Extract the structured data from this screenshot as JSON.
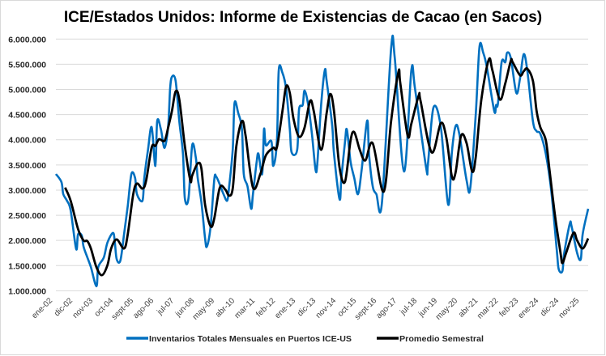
{
  "chart_data": {
    "type": "line",
    "title": "ICE/Estados Unidos: Informe de Existencias de Cacao (en Sacos)",
    "xlabel": "",
    "ylabel": "",
    "ylim": [
      1000000,
      6000000
    ],
    "y_ticks": [
      1000000,
      1500000,
      2000000,
      2500000,
      3000000,
      3500000,
      4000000,
      4500000,
      5000000,
      5500000,
      6000000
    ],
    "y_tick_labels": [
      "1.000.000",
      "1.500.000",
      "2.000.000",
      "2.500.000",
      "3.000.000",
      "3.500.000",
      "4.000.000",
      "4.500.000",
      "5.000.000",
      "5.500.000",
      "6.000.000"
    ],
    "x_range": [
      "2002-01",
      "2026-02"
    ],
    "x_ticks": [
      "2002-01",
      "2002-12",
      "2003-11",
      "2004-10",
      "2005-09",
      "2006-08",
      "2007-07",
      "2008-06",
      "2009-05",
      "2010-04",
      "2011-03",
      "2012-02",
      "2013-01",
      "2013-12",
      "2014-11",
      "2015-10",
      "2016-09",
      "2017-08",
      "2018-07",
      "2019-06",
      "2020-05",
      "2021-04",
      "2022-03",
      "2023-02",
      "2024-01",
      "2024-12",
      "2025-11"
    ],
    "x_tick_labels": [
      "ene-02",
      "dic-02",
      "nov-03",
      "oct-04",
      "sept-05",
      "ago-06",
      "jul-07",
      "jun-08",
      "may-09",
      "abr-10",
      "mar-11",
      "feb-12",
      "ene-13",
      "dic-13",
      "nov-14",
      "oct-15",
      "sept-16",
      "ago-17",
      "jul-18",
      "jun-19",
      "may-20",
      "abr-21",
      "mar-22",
      "feb-23",
      "ene-24",
      "dic-24",
      "nov-25"
    ],
    "grid": true,
    "legend_position": "bottom",
    "series": [
      {
        "name": "Inventarios Totales Mensuales en Puertos ICE-US",
        "color": "#0070C0",
        "points": [
          [
            "2002-01",
            3320000
          ],
          [
            "2002-04",
            3160000
          ],
          [
            "2002-05",
            2920000
          ],
          [
            "2002-07",
            2790000
          ],
          [
            "2002-09",
            2600000
          ],
          [
            "2002-12",
            1830000
          ],
          [
            "2003-01",
            2120000
          ],
          [
            "2003-03",
            2100000
          ],
          [
            "2003-04",
            1880000
          ],
          [
            "2003-06",
            1670000
          ],
          [
            "2003-08",
            1470000
          ],
          [
            "2003-11",
            1090000
          ],
          [
            "2003-12",
            1470000
          ],
          [
            "2004-03",
            1660000
          ],
          [
            "2004-05",
            1960000
          ],
          [
            "2004-08",
            2150000
          ],
          [
            "2004-09",
            1960000
          ],
          [
            "2004-10",
            1630000
          ],
          [
            "2004-12",
            1600000
          ],
          [
            "2005-02",
            2120000
          ],
          [
            "2005-04",
            2680000
          ],
          [
            "2005-06",
            3320000
          ],
          [
            "2005-08",
            3240000
          ],
          [
            "2005-09",
            2920000
          ],
          [
            "2005-12",
            2790000
          ],
          [
            "2006-01",
            3240000
          ],
          [
            "2006-03",
            3800000
          ],
          [
            "2006-05",
            4250000
          ],
          [
            "2006-07",
            3480000
          ],
          [
            "2006-08",
            4370000
          ],
          [
            "2006-10",
            4210000
          ],
          [
            "2006-12",
            3840000
          ],
          [
            "2007-02",
            4290000
          ],
          [
            "2007-03",
            5010000
          ],
          [
            "2007-04",
            5250000
          ],
          [
            "2007-06",
            5170000
          ],
          [
            "2007-08",
            4370000
          ],
          [
            "2007-10",
            3720000
          ],
          [
            "2007-11",
            2840000
          ],
          [
            "2008-01",
            2840000
          ],
          [
            "2008-03",
            3890000
          ],
          [
            "2008-05",
            3640000
          ],
          [
            "2008-06",
            3240000
          ],
          [
            "2008-08",
            2760000
          ],
          [
            "2008-10",
            2040000
          ],
          [
            "2008-11",
            1880000
          ],
          [
            "2009-01",
            2280000
          ],
          [
            "2009-03",
            3210000
          ],
          [
            "2009-04",
            3270000
          ],
          [
            "2009-06",
            3110000
          ],
          [
            "2009-08",
            2920000
          ],
          [
            "2009-10",
            2790000
          ],
          [
            "2009-11",
            3050000
          ],
          [
            "2010-01",
            3800000
          ],
          [
            "2010-02",
            4730000
          ],
          [
            "2010-04",
            4530000
          ],
          [
            "2010-06",
            4210000
          ],
          [
            "2010-07",
            3320000
          ],
          [
            "2010-09",
            3080000
          ],
          [
            "2010-11",
            2630000
          ],
          [
            "2010-12",
            2920000
          ],
          [
            "2011-02",
            3560000
          ],
          [
            "2011-03",
            3720000
          ],
          [
            "2011-05",
            3320000
          ],
          [
            "2011-06",
            4210000
          ],
          [
            "2011-07",
            3890000
          ],
          [
            "2011-10",
            3970000
          ],
          [
            "2011-11",
            3480000
          ],
          [
            "2012-01",
            3970000
          ],
          [
            "2012-02",
            5380000
          ],
          [
            "2012-04",
            5330000
          ],
          [
            "2012-06",
            5010000
          ],
          [
            "2012-08",
            4210000
          ],
          [
            "2012-09",
            3750000
          ],
          [
            "2012-12",
            3800000
          ],
          [
            "2013-01",
            4600000
          ],
          [
            "2013-03",
            4690000
          ],
          [
            "2013-04",
            4980000
          ],
          [
            "2013-06",
            4690000
          ],
          [
            "2013-08",
            4120000
          ],
          [
            "2013-10",
            3400000
          ],
          [
            "2013-11",
            3560000
          ],
          [
            "2014-01",
            4690000
          ],
          [
            "2014-03",
            5380000
          ],
          [
            "2014-04",
            5170000
          ],
          [
            "2014-07",
            4290000
          ],
          [
            "2014-08",
            3720000
          ],
          [
            "2014-11",
            2820000
          ],
          [
            "2014-12",
            3240000
          ],
          [
            "2015-02",
            3970000
          ],
          [
            "2015-03",
            4200000
          ],
          [
            "2015-05",
            3560000
          ],
          [
            "2015-07",
            3240000
          ],
          [
            "2015-09",
            2920000
          ],
          [
            "2015-11",
            3400000
          ],
          [
            "2016-02",
            4380000
          ],
          [
            "2016-03",
            3720000
          ],
          [
            "2016-05",
            3080000
          ],
          [
            "2016-07",
            2920000
          ],
          [
            "2016-10",
            2740000
          ],
          [
            "2017-03",
            5810000
          ],
          [
            "2017-05",
            5620000
          ],
          [
            "2017-10",
            3370000
          ],
          [
            "2018-02",
            5380000
          ],
          [
            "2018-04",
            5010000
          ],
          [
            "2018-10",
            3450000
          ],
          [
            "2018-11",
            3520000
          ],
          [
            "2019-02",
            4640000
          ],
          [
            "2019-06",
            4250000
          ],
          [
            "2019-10",
            2710000
          ],
          [
            "2019-12",
            3750000
          ],
          [
            "2020-02",
            4270000
          ],
          [
            "2020-04",
            4120000
          ],
          [
            "2020-08",
            3190000
          ],
          [
            "2020-10",
            3050000
          ],
          [
            "2021-01",
            4530000
          ],
          [
            "2021-03",
            5850000
          ],
          [
            "2021-05",
            5730000
          ],
          [
            "2021-07",
            5440000
          ],
          [
            "2021-11",
            4570000
          ],
          [
            "2021-12",
            4690000
          ],
          [
            "2022-01",
            4720000
          ],
          [
            "2022-03",
            5540000
          ],
          [
            "2022-05",
            5540000
          ],
          [
            "2022-06",
            5730000
          ],
          [
            "2022-08",
            5620000
          ],
          [
            "2022-11",
            4930000
          ],
          [
            "2023-01",
            5220000
          ],
          [
            "2023-03",
            5700000
          ],
          [
            "2023-05",
            5360000
          ],
          [
            "2023-08",
            4370000
          ],
          [
            "2023-10",
            4170000
          ],
          [
            "2023-12",
            4120000
          ],
          [
            "2024-03",
            3720000
          ],
          [
            "2024-06",
            2970000
          ],
          [
            "2024-09",
            1790000
          ],
          [
            "2024-10",
            1430000
          ],
          [
            "2024-12",
            1390000
          ],
          [
            "2025-01",
            1750000
          ],
          [
            "2025-04",
            2330000
          ],
          [
            "2025-05",
            2280000
          ],
          [
            "2025-08",
            1750000
          ],
          [
            "2025-10",
            1630000
          ],
          [
            "2025-11",
            2120000
          ],
          [
            "2026-02",
            2630000
          ]
        ]
      },
      {
        "name": "Promedio Semestral",
        "color": "#000000",
        "points": [
          [
            "2002-06",
            3050000
          ],
          [
            "2002-09",
            2790000
          ],
          [
            "2003-01",
            2230000
          ],
          [
            "2003-04",
            2000000
          ],
          [
            "2003-06",
            1990000
          ],
          [
            "2003-08",
            1840000
          ],
          [
            "2003-11",
            1470000
          ],
          [
            "2004-02",
            1310000
          ],
          [
            "2004-05",
            1510000
          ],
          [
            "2004-07",
            1840000
          ],
          [
            "2004-10",
            2020000
          ],
          [
            "2005-02",
            1840000
          ],
          [
            "2005-04",
            2120000
          ],
          [
            "2005-07",
            2920000
          ],
          [
            "2005-09",
            3130000
          ],
          [
            "2005-12",
            3030000
          ],
          [
            "2006-02",
            3190000
          ],
          [
            "2006-05",
            3850000
          ],
          [
            "2006-07",
            3880000
          ],
          [
            "2006-09",
            4010000
          ],
          [
            "2006-12",
            3980000
          ],
          [
            "2007-02",
            4250000
          ],
          [
            "2007-04",
            4570000
          ],
          [
            "2007-06",
            4960000
          ],
          [
            "2007-08",
            4800000
          ],
          [
            "2007-11",
            3880000
          ],
          [
            "2008-02",
            3190000
          ],
          [
            "2008-03",
            3290000
          ],
          [
            "2008-06",
            3530000
          ],
          [
            "2008-08",
            3430000
          ],
          [
            "2008-10",
            2710000
          ],
          [
            "2009-01",
            2280000
          ],
          [
            "2009-03",
            2440000
          ],
          [
            "2009-06",
            3050000
          ],
          [
            "2009-09",
            3010000
          ],
          [
            "2009-11",
            2890000
          ],
          [
            "2010-01",
            3030000
          ],
          [
            "2010-03",
            3880000
          ],
          [
            "2010-06",
            4370000
          ],
          [
            "2010-08",
            4080000
          ],
          [
            "2010-12",
            3050000
          ],
          [
            "2011-04",
            3320000
          ],
          [
            "2011-07",
            3690000
          ],
          [
            "2011-11",
            3840000
          ],
          [
            "2012-01",
            3850000
          ],
          [
            "2012-04",
            4570000
          ],
          [
            "2012-06",
            5060000
          ],
          [
            "2012-08",
            4930000
          ],
          [
            "2012-10",
            4420000
          ],
          [
            "2013-01",
            4060000
          ],
          [
            "2013-04",
            4240000
          ],
          [
            "2013-07",
            4770000
          ],
          [
            "2013-09",
            4570000
          ],
          [
            "2014-01",
            3800000
          ],
          [
            "2014-04",
            4530000
          ],
          [
            "2014-06",
            4910000
          ],
          [
            "2014-08",
            4570000
          ],
          [
            "2014-11",
            3450000
          ],
          [
            "2015-02",
            3170000
          ],
          [
            "2015-05",
            3990000
          ],
          [
            "2015-07",
            4150000
          ],
          [
            "2015-10",
            3800000
          ],
          [
            "2016-01",
            3590000
          ],
          [
            "2016-05",
            3930000
          ],
          [
            "2016-11",
            2970000
          ],
          [
            "2017-03",
            4370000
          ],
          [
            "2017-07",
            5350000
          ],
          [
            "2017-08",
            5120000
          ],
          [
            "2017-12",
            4080000
          ],
          [
            "2018-02",
            4320000
          ],
          [
            "2018-06",
            4880000
          ],
          [
            "2018-07",
            4770000
          ],
          [
            "2019-01",
            3750000
          ],
          [
            "2019-06",
            4330000
          ],
          [
            "2019-09",
            4040000
          ],
          [
            "2019-12",
            3270000
          ],
          [
            "2020-02",
            3350000
          ],
          [
            "2020-05",
            4080000
          ],
          [
            "2020-08",
            3930000
          ],
          [
            "2020-11",
            3370000
          ],
          [
            "2021-01",
            3670000
          ],
          [
            "2021-04",
            4800000
          ],
          [
            "2021-08",
            5590000
          ],
          [
            "2021-10",
            5380000
          ],
          [
            "2022-02",
            4800000
          ],
          [
            "2022-05",
            5120000
          ],
          [
            "2022-08",
            5570000
          ],
          [
            "2022-09",
            5540000
          ],
          [
            "2023-01",
            5280000
          ],
          [
            "2023-03",
            5360000
          ],
          [
            "2023-05",
            5410000
          ],
          [
            "2023-08",
            5170000
          ],
          [
            "2023-10",
            4570000
          ],
          [
            "2023-12",
            4250000
          ],
          [
            "2024-03",
            3990000
          ],
          [
            "2024-05",
            3400000
          ],
          [
            "2024-08",
            2490000
          ],
          [
            "2024-11",
            1750000
          ],
          [
            "2024-12",
            1550000
          ],
          [
            "2025-02",
            1750000
          ],
          [
            "2025-06",
            2150000
          ],
          [
            "2025-08",
            2000000
          ],
          [
            "2025-11",
            1840000
          ],
          [
            "2026-02",
            2040000
          ]
        ]
      }
    ]
  }
}
